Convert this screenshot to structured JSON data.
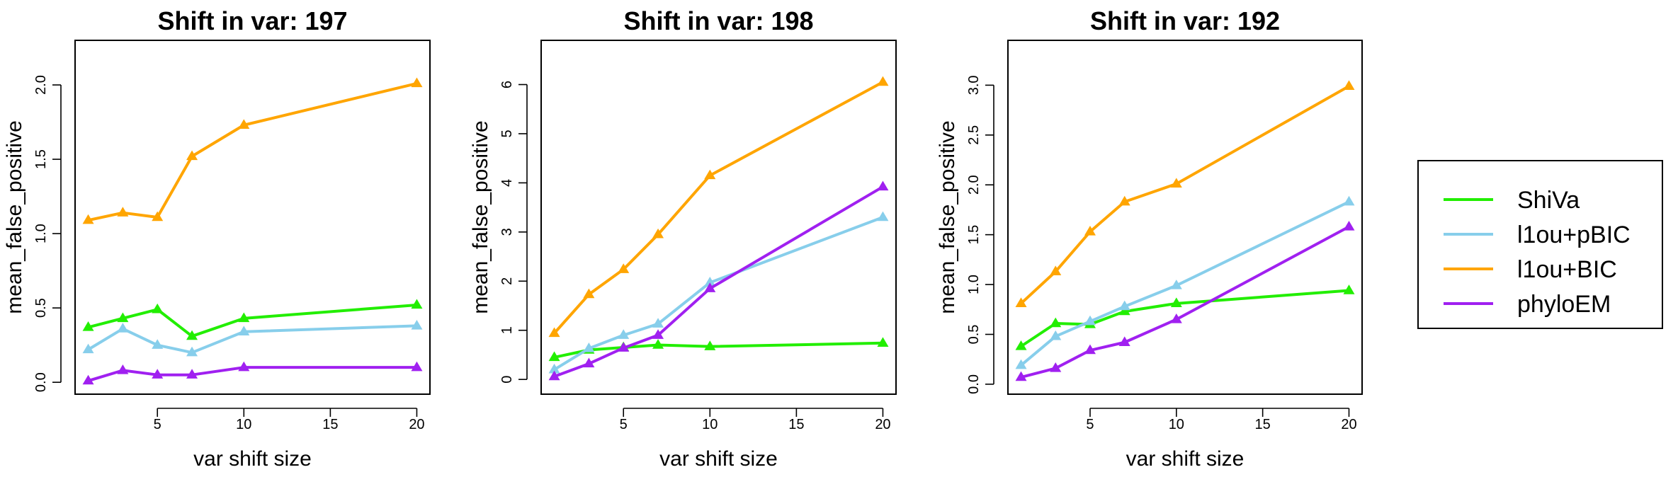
{
  "chart_data": {
    "series_colors": {
      "ShiVa": "#22EE00",
      "l1ou+pBIC": "#87CEEB",
      "l1ou+BIC": "#FFA500",
      "phyloEM": "#A020F0"
    },
    "legend": {
      "entries": [
        "ShiVa",
        "l1ou+pBIC",
        "l1ou+BIC",
        "phyloEM"
      ],
      "placement": "right"
    },
    "panels": [
      {
        "type": "line",
        "title": "Shift in var: 197",
        "xlabel": "var shift size",
        "ylabel": "mean_false_positive",
        "xticks": [
          5,
          10,
          15,
          20
        ],
        "xtick_labels": [
          "5",
          "10",
          "15",
          "20"
        ],
        "yticks": [
          0,
          0.5,
          1,
          1.5,
          2
        ],
        "ytick_labels": [
          "0.0",
          "0.5",
          "1.0",
          "1.5",
          "2.0"
        ],
        "xlim": [
          0.24,
          20.76
        ],
        "ylim": [
          -0.08,
          2.3
        ],
        "x": [
          1,
          3,
          5,
          7,
          10,
          20
        ],
        "series": [
          {
            "name": "ShiVa",
            "values": [
              0.37,
              0.43,
              0.49,
              0.31,
              0.43,
              0.52
            ]
          },
          {
            "name": "l1ou+pBIC",
            "values": [
              0.22,
              0.36,
              0.25,
              0.2,
              0.34,
              0.38
            ]
          },
          {
            "name": "l1ou+BIC",
            "values": [
              1.09,
              1.14,
              1.11,
              1.52,
              1.73,
              2.01
            ]
          },
          {
            "name": "phyloEM",
            "values": [
              0.01,
              0.08,
              0.05,
              0.05,
              0.1,
              0.1
            ]
          }
        ]
      },
      {
        "type": "line",
        "title": "Shift in var: 198",
        "xlabel": "var shift size",
        "ylabel": "mean_false_positive",
        "xticks": [
          5,
          10,
          15,
          20
        ],
        "xtick_labels": [
          "5",
          "10",
          "15",
          "20"
        ],
        "yticks": [
          0,
          1,
          2,
          3,
          4,
          5,
          6
        ],
        "ytick_labels": [
          "0",
          "1",
          "2",
          "3",
          "4",
          "5",
          "6"
        ],
        "xlim": [
          0.24,
          20.76
        ],
        "ylim": [
          -0.3,
          6.9
        ],
        "x": [
          1,
          3,
          5,
          7,
          10,
          20
        ],
        "series": [
          {
            "name": "ShiVa",
            "values": [
              0.45,
              0.6,
              0.65,
              0.7,
              0.67,
              0.74
            ]
          },
          {
            "name": "l1ou+pBIC",
            "values": [
              0.2,
              0.63,
              0.9,
              1.13,
              1.97,
              3.3
            ]
          },
          {
            "name": "l1ou+BIC",
            "values": [
              0.94,
              1.73,
              2.24,
              2.95,
              4.15,
              6.05
            ]
          },
          {
            "name": "phyloEM",
            "values": [
              0.06,
              0.32,
              0.64,
              0.9,
              1.85,
              3.92
            ]
          }
        ]
      },
      {
        "type": "line",
        "title": "Shift in var: 192",
        "xlabel": "var shift size",
        "ylabel": "mean_false_positive",
        "xticks": [
          5,
          10,
          15,
          20
        ],
        "xtick_labels": [
          "5",
          "10",
          "15",
          "20"
        ],
        "yticks": [
          0,
          0.5,
          1,
          1.5,
          2,
          2.5,
          3
        ],
        "ytick_labels": [
          "0.0",
          "0.5",
          "1.0",
          "1.5",
          "2.0",
          "2.5",
          "3.0"
        ],
        "xlim": [
          0.24,
          20.76
        ],
        "ylim": [
          -0.1,
          3.45
        ],
        "x": [
          1,
          3,
          5,
          7,
          10,
          20
        ],
        "series": [
          {
            "name": "ShiVa",
            "values": [
              0.38,
              0.61,
              0.6,
              0.73,
              0.81,
              0.94
            ]
          },
          {
            "name": "l1ou+pBIC",
            "values": [
              0.19,
              0.48,
              0.63,
              0.78,
              0.99,
              1.83
            ]
          },
          {
            "name": "l1ou+BIC",
            "values": [
              0.81,
              1.13,
              1.53,
              1.83,
              2.01,
              2.99
            ]
          },
          {
            "name": "phyloEM",
            "values": [
              0.07,
              0.16,
              0.34,
              0.42,
              0.65,
              1.58
            ]
          }
        ]
      }
    ]
  }
}
